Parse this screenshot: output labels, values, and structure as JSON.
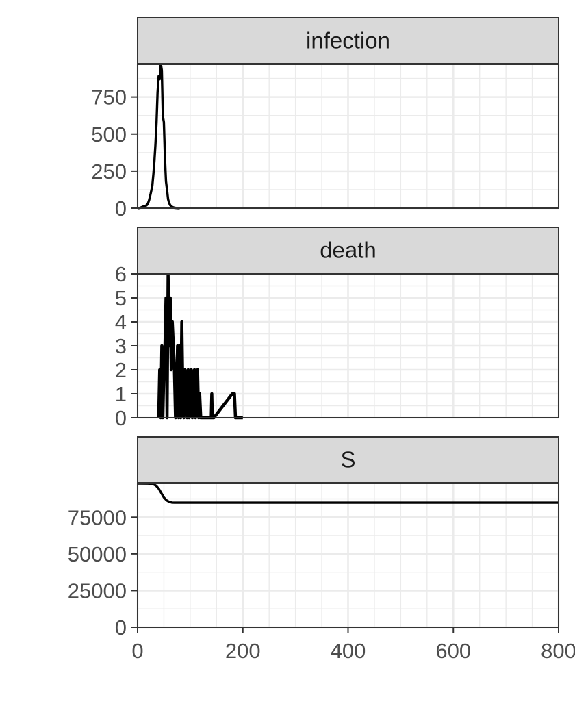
{
  "chart_data": {
    "type": "line",
    "layout": "faceted vertically, shared x axis, free y scales",
    "theme": {
      "strip_fill": "#d9d9d9",
      "border": "#333333",
      "line": "#000000",
      "grid": "#ebebeb"
    },
    "grid": true,
    "x_axis": {
      "range": [
        0,
        800
      ],
      "ticks": [
        "0",
        "200",
        "400",
        "600",
        "800"
      ]
    },
    "panels": [
      {
        "title": "infection",
        "y_range": [
          0,
          970
        ],
        "y_ticks": [
          0,
          250,
          500,
          750
        ],
        "y_tick_labels": [
          "0",
          "250",
          "500",
          "750"
        ],
        "x": [
          1,
          5,
          10,
          15,
          18,
          20,
          22,
          25,
          28,
          30,
          32,
          34,
          36,
          38,
          40,
          42,
          44,
          46,
          48,
          50,
          52,
          53,
          54,
          56,
          58,
          60,
          62,
          64,
          66,
          70,
          75,
          80
        ],
        "y": [
          0,
          3,
          10,
          15,
          22,
          35,
          55,
          100,
          150,
          230,
          320,
          430,
          580,
          780,
          890,
          870,
          980,
          930,
          620,
          580,
          340,
          260,
          180,
          120,
          60,
          35,
          20,
          15,
          8,
          3,
          1,
          0
        ]
      },
      {
        "title": "death",
        "y_range": [
          0,
          6
        ],
        "y_ticks": [
          0,
          1,
          2,
          3,
          4,
          5,
          6
        ],
        "y_tick_labels": [
          "0",
          "1",
          "2",
          "3",
          "4",
          "5",
          "6"
        ],
        "x": [
          40,
          42,
          44,
          46,
          48,
          50,
          52,
          54,
          56,
          58,
          60,
          62,
          64,
          66,
          68,
          70,
          72,
          74,
          76,
          78,
          80,
          82,
          84,
          86,
          88,
          90,
          92,
          94,
          96,
          98,
          100,
          102,
          104,
          106,
          108,
          110,
          112,
          114,
          116,
          118,
          120,
          122,
          124,
          130,
          140,
          141,
          142,
          143,
          144,
          145,
          180,
          182,
          184,
          186,
          188,
          190,
          200
        ],
        "y": [
          0,
          2,
          0,
          3,
          0,
          2,
          3,
          5,
          0,
          6,
          3,
          5,
          2,
          4,
          3,
          2,
          0,
          1,
          3,
          0,
          3,
          0,
          4,
          1,
          0,
          2,
          1,
          0,
          2,
          0,
          1,
          2,
          0,
          1,
          2,
          0,
          1,
          2,
          0,
          1,
          0,
          0,
          0,
          0,
          0,
          1,
          0,
          0,
          0,
          0,
          1,
          1,
          1,
          0,
          0,
          0,
          0
        ]
      },
      {
        "title": "S",
        "y_range": [
          0,
          98000
        ],
        "y_ticks": [
          0,
          25000,
          50000,
          75000
        ],
        "y_tick_labels": [
          "0",
          "25000",
          "50000",
          "75000"
        ],
        "x": [
          0,
          20,
          30,
          35,
          40,
          45,
          50,
          55,
          60,
          65,
          70,
          80,
          100,
          200,
          400,
          600,
          800
        ],
        "y": [
          98000,
          97900,
          97500,
          96500,
          94500,
          91500,
          88500,
          86500,
          85500,
          85000,
          84900,
          84900,
          84900,
          84900,
          84900,
          84900,
          84900
        ]
      }
    ]
  }
}
